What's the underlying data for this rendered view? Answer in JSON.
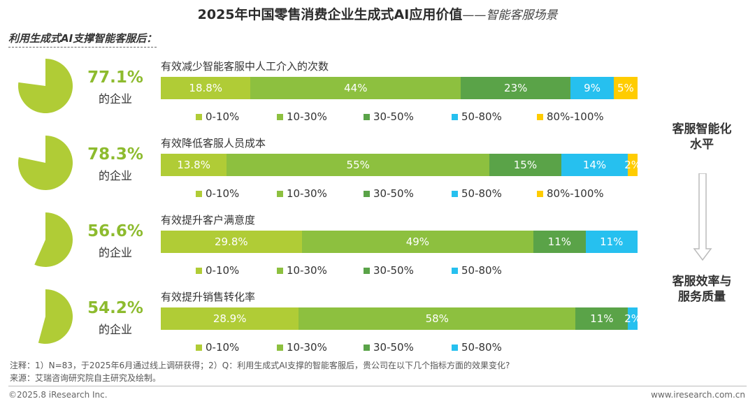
{
  "title": {
    "main": "2025年中国零售消费企业生成式AI应用价值",
    "sub": "——智能客服场景"
  },
  "subheading": "利用生成式AI支撑智能客服后：",
  "colors": {
    "0-10%": "#b0cc36",
    "10-30%": "#8dc03f",
    "30-50%": "#5aa348",
    "50-80%": "#26c0ef",
    "80%-100%": "#ffcc00",
    "pie": "#b0cc36",
    "pct_text": "#8dbb2e"
  },
  "chart_data": {
    "type": "bar",
    "orientation": "horizontal-stacked",
    "unit": "%",
    "legend_categories": [
      "0-10%",
      "10-30%",
      "30-50%",
      "50-80%",
      "80%-100%"
    ],
    "rows": [
      {
        "metric": "有效减少智能客服中人工介入的次数",
        "share": 77.1,
        "share_label": "77.1%",
        "share_caption": "的企业",
        "segments": [
          {
            "category": "0-10%",
            "value": 18.8,
            "label": "18.8%"
          },
          {
            "category": "10-30%",
            "value": 44,
            "label": "44%"
          },
          {
            "category": "30-50%",
            "value": 23,
            "label": "23%"
          },
          {
            "category": "50-80%",
            "value": 9,
            "label": "9%"
          },
          {
            "category": "80%-100%",
            "value": 5,
            "label": "5%"
          }
        ]
      },
      {
        "metric": "有效降低客服人员成本",
        "share": 78.3,
        "share_label": "78.3%",
        "share_caption": "的企业",
        "segments": [
          {
            "category": "0-10%",
            "value": 13.8,
            "label": "13.8%"
          },
          {
            "category": "10-30%",
            "value": 55,
            "label": "55%"
          },
          {
            "category": "30-50%",
            "value": 15,
            "label": "15%"
          },
          {
            "category": "50-80%",
            "value": 14,
            "label": "14%"
          },
          {
            "category": "80%-100%",
            "value": 2,
            "label": "2%"
          }
        ]
      },
      {
        "metric": "有效提升客户满意度",
        "share": 56.6,
        "share_label": "56.6%",
        "share_caption": "的企业",
        "segments": [
          {
            "category": "0-10%",
            "value": 29.8,
            "label": "29.8%"
          },
          {
            "category": "10-30%",
            "value": 49,
            "label": "49%"
          },
          {
            "category": "30-50%",
            "value": 11,
            "label": "11%"
          },
          {
            "category": "50-80%",
            "value": 11,
            "label": "11%"
          }
        ]
      },
      {
        "metric": "有效提升销售转化率",
        "share": 54.2,
        "share_label": "54.2%",
        "share_caption": "的企业",
        "segments": [
          {
            "category": "0-10%",
            "value": 28.9,
            "label": "28.9%"
          },
          {
            "category": "10-30%",
            "value": 58,
            "label": "58%"
          },
          {
            "category": "30-50%",
            "value": 11,
            "label": "11%"
          },
          {
            "category": "50-80%",
            "value": 2,
            "label": "2%"
          }
        ]
      }
    ]
  },
  "side_labels": {
    "top": "客服智能化\n水平",
    "bottom": "客服效率与\n服务质量"
  },
  "footer": {
    "note": "注释：1）N=83，于2025年6月通过线上调研获得；2）Q：利用生成式AI支撑的智能客服后，贵公司在以下几个指标方面的效果变化?",
    "source": "来源：艾瑞咨询研究院自主研究及绘制。",
    "copyright": "©2025.8 iResearch Inc.",
    "website": "www.iresearch.com.cn"
  }
}
